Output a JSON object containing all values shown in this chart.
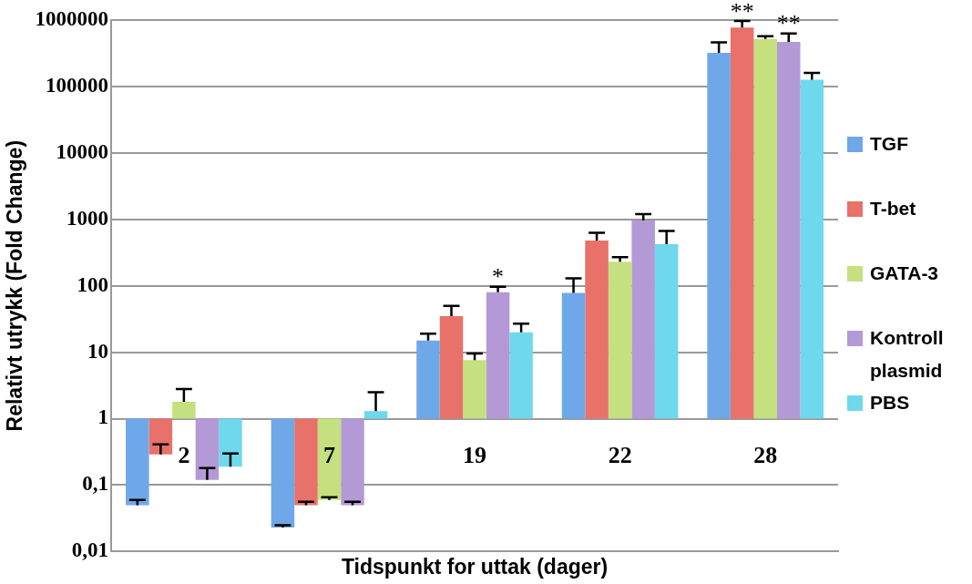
{
  "chart_data": {
    "type": "bar",
    "xlabel": "Tidspunkt for uttak (dager)",
    "ylabel": "Relativt utrykk (Fold Change)",
    "categories": [
      "2",
      "7",
      "19",
      "22",
      "28"
    ],
    "series": [
      {
        "name": "TGF",
        "color": "#6fa8e8",
        "base": [
          1,
          1,
          1,
          1,
          1
        ],
        "values": [
          -0.95,
          -0.977,
          14,
          77,
          319999
        ],
        "errors": [
          [
            0.05,
            0.06
          ],
          [
            0.023,
            0.025
          ],
          [
            15,
            19
          ],
          [
            78,
            130
          ],
          [
            320000,
            460000
          ]
        ]
      },
      {
        "name": "T-bet",
        "color": "#e8716a",
        "base": [
          1,
          1,
          1,
          1,
          1
        ],
        "values": [
          -0.71,
          -0.95,
          34,
          479,
          769999
        ],
        "errors": [
          [
            0.29,
            0.41
          ],
          [
            0.05,
            0.056
          ],
          [
            35,
            50
          ],
          [
            480,
            630
          ],
          [
            770000,
            970000
          ]
        ]
      },
      {
        "name": "GATA-3",
        "color": "#c5e07f",
        "base": [
          1,
          1,
          1,
          1,
          1
        ],
        "values": [
          0.8,
          -0.94,
          6.6,
          229,
          519999
        ],
        "errors": [
          [
            1.8,
            2.8
          ],
          [
            0.06,
            0.066
          ],
          [
            7.6,
            9.6
          ],
          [
            230,
            270
          ],
          [
            520000,
            570000
          ]
        ]
      },
      {
        "name": "Kontroll plasmid",
        "color": "#b39ad6",
        "base": [
          1,
          1,
          1,
          1,
          1
        ],
        "values": [
          -0.88,
          -0.95,
          79,
          959,
          469999
        ],
        "errors": [
          [
            0.12,
            0.18
          ],
          [
            0.05,
            0.056
          ],
          [
            80,
            97
          ],
          [
            960,
            1200
          ],
          [
            470000,
            630000
          ]
        ]
      },
      {
        "name": "PBS",
        "color": "#6fd8ec",
        "base": [
          1,
          1,
          1,
          1,
          1
        ],
        "values": [
          -0.81,
          0.3,
          19,
          424,
          125999
        ],
        "errors": [
          [
            0.19,
            0.3
          ],
          [
            1.3,
            2.5
          ],
          [
            20,
            27
          ],
          [
            425,
            670
          ],
          [
            126000,
            160000
          ]
        ]
      }
    ],
    "log": "y",
    "ylim": [
      0.01,
      1000000
    ],
    "yticks": [
      {
        "value": 0.01,
        "label": "0,01"
      },
      {
        "value": 0.1,
        "label": "0,1"
      },
      1,
      10,
      100,
      1000,
      10000,
      100000,
      1000000
    ],
    "grid": "y",
    "legend": "right",
    "annotations": [
      "*",
      "**",
      "**"
    ]
  }
}
